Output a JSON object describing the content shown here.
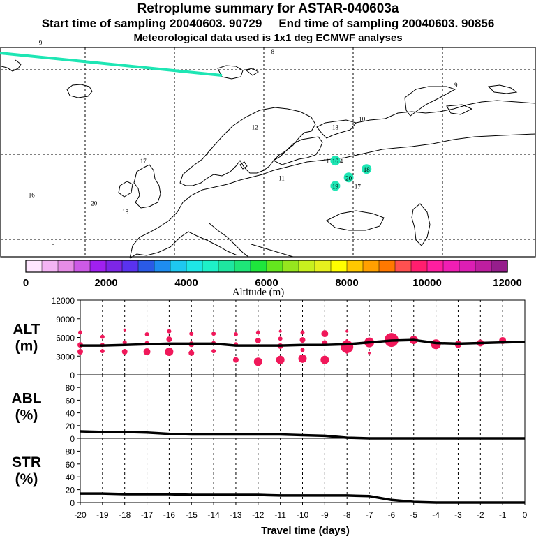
{
  "header": {
    "title": "Retroplume summary for ASTAR-040603a",
    "start_label": "Start time of sampling 20040603. 90729",
    "end_label": "End time of sampling 20040603. 90856",
    "met_label": "Meteorological data used is 1x1 deg ECMWF analyses"
  },
  "colors": {
    "palette": [
      "#ffe6ff",
      "#f4b4f4",
      "#e68ce6",
      "#cc5ae6",
      "#a020f0",
      "#7d26e6",
      "#5a32f0",
      "#2a5ae6",
      "#1e8cf0",
      "#1ec8f0",
      "#1ee6e6",
      "#1ef0c8",
      "#1ee6a0",
      "#1ee678",
      "#1ee63c",
      "#64e61e",
      "#96e61e",
      "#c8f01e",
      "#e6f01e",
      "#ffff00",
      "#ffc800",
      "#ffa000",
      "#ff7800",
      "#ff5050",
      "#ff1e6e",
      "#ff1ea0",
      "#f01eb4",
      "#dc1eb4",
      "#be1ea0",
      "#961e8c"
    ],
    "plume_marker": "#f0185a",
    "trajectory": "#1ee6b4"
  },
  "map": {
    "point_labels": [
      {
        "text": "9",
        "lon": -30,
        "lat": 73
      },
      {
        "text": "8",
        "lon": 22,
        "lat": 72
      },
      {
        "text": "9",
        "lon": 63,
        "lat": 68
      },
      {
        "text": "12",
        "lon": 18,
        "lat": 63
      },
      {
        "text": "10",
        "lon": 42,
        "lat": 64
      },
      {
        "text": "18",
        "lon": 36,
        "lat": 63
      },
      {
        "text": "17",
        "lon": -7,
        "lat": 59
      },
      {
        "text": "16",
        "lon": 36,
        "lat": 59
      },
      {
        "text": "11",
        "lon": 34,
        "lat": 59
      },
      {
        "text": "14",
        "lon": 37,
        "lat": 59
      },
      {
        "text": "18",
        "lon": 43,
        "lat": 58
      },
      {
        "text": "11",
        "lon": 24,
        "lat": 57
      },
      {
        "text": "20",
        "lon": 39,
        "lat": 57
      },
      {
        "text": "19",
        "lon": 36,
        "lat": 56
      },
      {
        "text": "17",
        "lon": 41,
        "lat": 56
      },
      {
        "text": "16",
        "lon": -32,
        "lat": 55
      },
      {
        "text": "20",
        "lon": -18,
        "lat": 54
      },
      {
        "text": "18",
        "lon": -11,
        "lat": 53
      }
    ],
    "highlighted_labels": [
      "16",
      "20",
      "18",
      "19"
    ]
  },
  "colorbar": {
    "tick_labels": [
      "0",
      "2000",
      "4000",
      "6000",
      "8000",
      "10000",
      "12000"
    ],
    "title": "Altitude (m)"
  },
  "chart_data": [
    {
      "type": "line",
      "name": "ALT",
      "ylabel_line1": "ALT",
      "ylabel_line2": "(m)",
      "ylim": [
        0,
        12000
      ],
      "yticks": [
        "0",
        "3000",
        "6000",
        "9000",
        "12000"
      ],
      "x": [
        -20,
        -19,
        -18,
        -17,
        -16,
        -15,
        -14,
        -13,
        -12,
        -11,
        -10,
        -9,
        -8,
        -7,
        -6,
        -5,
        -4,
        -3,
        -2,
        -1,
        0
      ],
      "mean_altitude": [
        4700,
        4700,
        4800,
        4900,
        5000,
        5000,
        5000,
        4700,
        4700,
        4700,
        4800,
        4800,
        4900,
        5200,
        5500,
        5600,
        5100,
        5000,
        5100,
        5200,
        5300
      ],
      "plume_points": [
        {
          "x": -20,
          "y": 6800,
          "size": 3
        },
        {
          "x": -20,
          "y": 4800,
          "size": 4
        },
        {
          "x": -20,
          "y": 3700,
          "size": 4
        },
        {
          "x": -19,
          "y": 6100,
          "size": 3
        },
        {
          "x": -19,
          "y": 4800,
          "size": 3
        },
        {
          "x": -19,
          "y": 3800,
          "size": 3
        },
        {
          "x": -18,
          "y": 7200,
          "size": 2
        },
        {
          "x": -18,
          "y": 5200,
          "size": 3
        },
        {
          "x": -18,
          "y": 3700,
          "size": 4
        },
        {
          "x": -17,
          "y": 6500,
          "size": 3
        },
        {
          "x": -17,
          "y": 5100,
          "size": 3
        },
        {
          "x": -17,
          "y": 3700,
          "size": 5
        },
        {
          "x": -16,
          "y": 7000,
          "size": 3
        },
        {
          "x": -16,
          "y": 5700,
          "size": 4
        },
        {
          "x": -16,
          "y": 3700,
          "size": 6
        },
        {
          "x": -15,
          "y": 6600,
          "size": 3
        },
        {
          "x": -15,
          "y": 4900,
          "size": 4
        },
        {
          "x": -15,
          "y": 3500,
          "size": 4
        },
        {
          "x": -14,
          "y": 6600,
          "size": 3
        },
        {
          "x": -14,
          "y": 5100,
          "size": 3
        },
        {
          "x": -14,
          "y": 3800,
          "size": 3
        },
        {
          "x": -13,
          "y": 6500,
          "size": 3
        },
        {
          "x": -13,
          "y": 4900,
          "size": 3
        },
        {
          "x": -13,
          "y": 2400,
          "size": 4
        },
        {
          "x": -12,
          "y": 6800,
          "size": 3
        },
        {
          "x": -12,
          "y": 5500,
          "size": 4
        },
        {
          "x": -12,
          "y": 2100,
          "size": 6
        },
        {
          "x": -11,
          "y": 7000,
          "size": 2
        },
        {
          "x": -11,
          "y": 5800,
          "size": 3
        },
        {
          "x": -11,
          "y": 4600,
          "size": 4
        },
        {
          "x": -11,
          "y": 2400,
          "size": 6
        },
        {
          "x": -10,
          "y": 6800,
          "size": 3
        },
        {
          "x": -10,
          "y": 5600,
          "size": 4
        },
        {
          "x": -10,
          "y": 4000,
          "size": 3
        },
        {
          "x": -10,
          "y": 2600,
          "size": 6
        },
        {
          "x": -9,
          "y": 6600,
          "size": 5
        },
        {
          "x": -9,
          "y": 5100,
          "size": 4
        },
        {
          "x": -9,
          "y": 2400,
          "size": 6
        },
        {
          "x": -8,
          "y": 7000,
          "size": 2
        },
        {
          "x": -8,
          "y": 5500,
          "size": 2
        },
        {
          "x": -8,
          "y": 4500,
          "size": 9
        },
        {
          "x": -8,
          "y": 3600,
          "size": 2
        },
        {
          "x": -7,
          "y": 5200,
          "size": 7
        },
        {
          "x": -7,
          "y": 3500,
          "size": 2
        },
        {
          "x": -6,
          "y": 5600,
          "size": 10
        },
        {
          "x": -5,
          "y": 5600,
          "size": 6
        },
        {
          "x": -4,
          "y": 4900,
          "size": 7
        },
        {
          "x": -3,
          "y": 4900,
          "size": 5
        },
        {
          "x": -2,
          "y": 5100,
          "size": 5
        },
        {
          "x": -1,
          "y": 5500,
          "size": 5
        }
      ]
    },
    {
      "type": "line",
      "name": "ABL",
      "ylabel_line1": "ABL",
      "ylabel_line2": "(%)",
      "ylim": [
        0,
        100
      ],
      "yticks": [
        "0",
        "20",
        "40",
        "60",
        "80"
      ],
      "x": [
        -20,
        -19,
        -18,
        -17,
        -16,
        -15,
        -14,
        -13,
        -12,
        -11,
        -10,
        -9,
        -8,
        -7,
        -6,
        -5,
        -4,
        -3,
        -2,
        -1,
        0
      ],
      "values": [
        11,
        10,
        10,
        9,
        7,
        6,
        6,
        6,
        6,
        6,
        5,
        4,
        1,
        0,
        0,
        0,
        0,
        0,
        0,
        0,
        0
      ]
    },
    {
      "type": "line",
      "name": "STR",
      "ylabel_line1": "STR",
      "ylabel_line2": "(%)",
      "ylim": [
        0,
        100
      ],
      "yticks": [
        "0",
        "20",
        "40",
        "60",
        "80"
      ],
      "x": [
        -20,
        -19,
        -18,
        -17,
        -16,
        -15,
        -14,
        -13,
        -12,
        -11,
        -10,
        -9,
        -8,
        -7,
        -6,
        -5,
        -4,
        -3,
        -2,
        -1,
        0
      ],
      "values": [
        14,
        14,
        13,
        13,
        13,
        12,
        12,
        12,
        12,
        11,
        11,
        11,
        11,
        10,
        4,
        1,
        0,
        0,
        0,
        0,
        0
      ],
      "xlabel": "Travel time (days)",
      "xticks": [
        "-20",
        "-19",
        "-18",
        "-17",
        "-16",
        "-15",
        "-14",
        "-13",
        "-12",
        "-11",
        "-10",
        "-9",
        "-8",
        "-7",
        "-6",
        "-5",
        "-4",
        "-3",
        "-2",
        "-1",
        "0"
      ]
    }
  ]
}
